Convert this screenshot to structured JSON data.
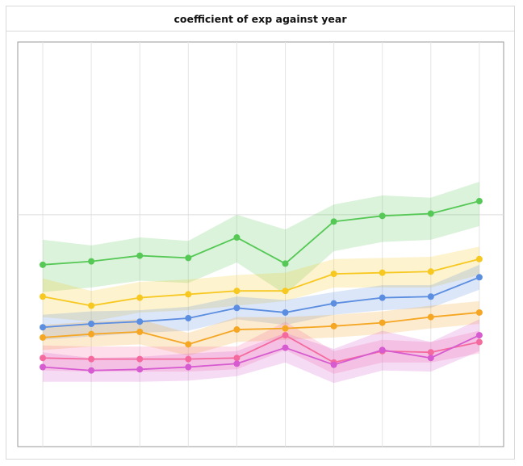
{
  "chart_data": {
    "type": "line",
    "title": "coefficient of exp against year",
    "xlabel": "",
    "ylabel": "",
    "x": [
      1,
      2,
      3,
      4,
      5,
      6,
      7,
      8,
      9,
      10
    ],
    "ylim": [
      -10.2,
      7.6
    ],
    "grid": true,
    "reference_line": 0,
    "series": [
      {
        "color": "#55c855",
        "values": [
          -2.2,
          -2.05,
          -1.8,
          -1.9,
          -1.0,
          -2.15,
          -0.3,
          -0.05,
          0.05,
          0.6
        ],
        "lower": [
          -3.4,
          -3.2,
          -2.9,
          -3.0,
          -2.1,
          -3.5,
          -1.6,
          -1.2,
          -1.1,
          -0.5
        ],
        "upper": [
          -1.1,
          -1.35,
          -1.0,
          -1.15,
          0.0,
          -0.65,
          0.45,
          0.85,
          0.75,
          1.45
        ]
      },
      {
        "color": "#f7c820",
        "values": [
          -3.6,
          -4.0,
          -3.65,
          -3.5,
          -3.35,
          -3.35,
          -2.6,
          -2.55,
          -2.5,
          -1.95
        ],
        "lower": [
          -4.5,
          -4.7,
          -4.3,
          -4.2,
          -4.0,
          -3.8,
          -3.2,
          -3.2,
          -3.2,
          -2.65
        ],
        "upper": [
          -2.8,
          -3.35,
          -2.95,
          -2.85,
          -2.65,
          -2.55,
          -1.95,
          -1.9,
          -1.85,
          -1.4
        ]
      },
      {
        "color": "#5b8de0",
        "values": [
          -4.95,
          -4.8,
          -4.7,
          -4.55,
          -4.1,
          -4.3,
          -3.9,
          -3.65,
          -3.6,
          -2.75
        ],
        "lower": [
          -5.5,
          -5.35,
          -5.2,
          -5.1,
          -4.6,
          -4.85,
          -4.4,
          -4.2,
          -4.1,
          -3.3
        ],
        "upper": [
          -4.4,
          -4.25,
          -4.2,
          -4.05,
          -3.6,
          -3.75,
          -3.4,
          -3.1,
          -3.1,
          -2.2
        ]
      },
      {
        "color": "#f5a623",
        "values": [
          -5.4,
          -5.25,
          -5.15,
          -5.7,
          -5.05,
          -5.0,
          -4.9,
          -4.75,
          -4.5,
          -4.3
        ],
        "lower": [
          -5.95,
          -5.8,
          -5.7,
          -6.2,
          -5.6,
          -5.5,
          -5.4,
          -5.25,
          -5.0,
          -4.8
        ],
        "upper": [
          -4.85,
          -4.7,
          -4.6,
          -5.2,
          -4.5,
          -4.5,
          -4.4,
          -4.25,
          -4.0,
          -3.8
        ]
      },
      {
        "color": "#f56a9e",
        "values": [
          -6.3,
          -6.35,
          -6.35,
          -6.35,
          -6.3,
          -5.3,
          -6.5,
          -6.0,
          -6.05,
          -5.6
        ],
        "lower": [
          -6.85,
          -6.9,
          -6.9,
          -6.9,
          -6.8,
          -5.95,
          -7.0,
          -6.5,
          -6.5,
          -6.1
        ],
        "upper": [
          -5.75,
          -5.8,
          -5.8,
          -5.8,
          -5.8,
          -4.7,
          -6.0,
          -5.5,
          -5.6,
          -5.1
        ]
      },
      {
        "color": "#d65ad0",
        "values": [
          -6.7,
          -6.85,
          -6.8,
          -6.7,
          -6.55,
          -5.85,
          -6.6,
          -5.95,
          -6.3,
          -5.3
        ],
        "lower": [
          -7.35,
          -7.35,
          -7.35,
          -7.3,
          -7.1,
          -6.5,
          -7.4,
          -6.85,
          -6.9,
          -6.0
        ],
        "upper": [
          -6.05,
          -6.3,
          -6.25,
          -6.1,
          -6.0,
          -5.2,
          -5.9,
          -5.1,
          -5.6,
          -4.6
        ]
      }
    ]
  }
}
